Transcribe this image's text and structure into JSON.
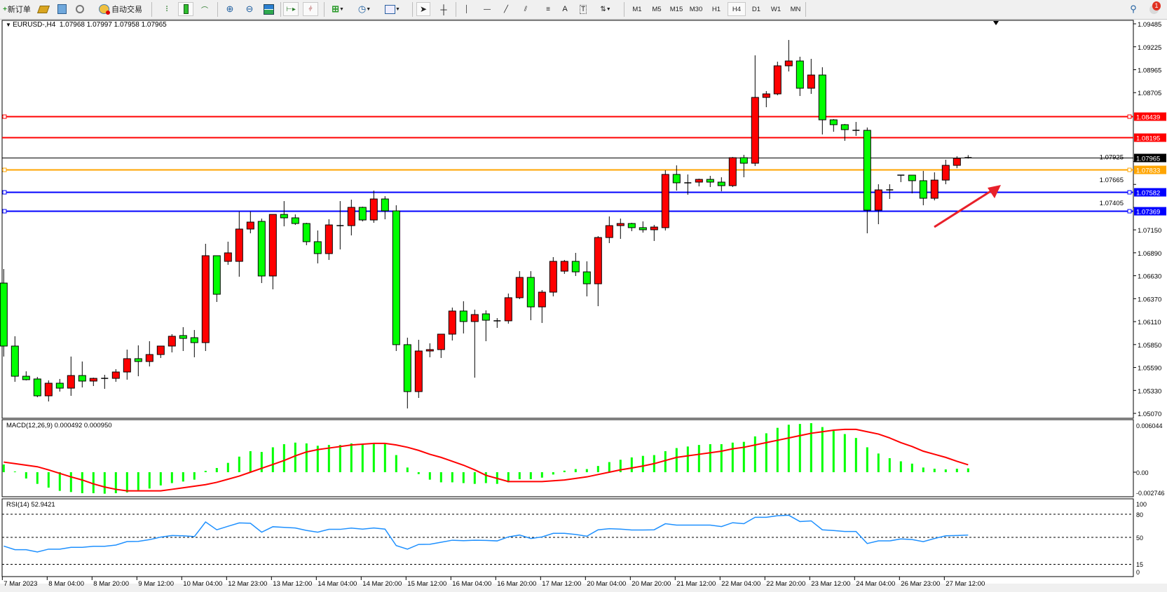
{
  "toolbar": {
    "new_order": "新订单",
    "auto_trading": "自动交易",
    "timeframes": [
      "M1",
      "M5",
      "M15",
      "M30",
      "H1",
      "H4",
      "D1",
      "W1",
      "MN"
    ],
    "active_timeframe": "H4",
    "notification_count": "1",
    "icons": [
      "new-order-icon",
      "market-watch-icon",
      "data-window-icon",
      "signals-icon",
      "auto-trading-icon",
      "bar-chart-icon",
      "candlestick-icon",
      "line-chart-icon",
      "zoom-in-icon",
      "zoom-out-icon",
      "tile-windows-icon",
      "auto-scroll-icon",
      "chart-shift-icon",
      "indicators-icon",
      "periods-icon",
      "templates-icon",
      "cursor-icon",
      "crosshair-icon",
      "vertical-line-icon",
      "horizontal-line-icon",
      "trendline-icon",
      "equidistant-channel-icon",
      "fibonacci-icon",
      "text-icon",
      "text-label-icon",
      "arrows-icon",
      "search-icon",
      "notification-icon"
    ]
  },
  "chart": {
    "header": "EURUSD-,H4  1.07968 1.07997 1.07958 1.07965",
    "macd_label": "MACD(12,26,9) 0.000492 0.000950",
    "rsi_label": "RSI(14) 52.9421"
  },
  "colors": {
    "bull": "#ff0000",
    "bear": "#00ff00",
    "macd_hist": "#00ff00",
    "signal": "#ff0000",
    "rsi": "#1e90ff",
    "arrow": "#e8202a"
  },
  "chart_data": {
    "type": "candlestick",
    "symbol": "EURUSD-",
    "timeframe": "H4",
    "ohlc": [
      [
        1.06547,
        1.06706,
        1.05714,
        1.05833
      ],
      [
        1.05833,
        1.05944,
        1.05428,
        1.05491
      ],
      [
        1.05491,
        1.05547,
        1.05444,
        1.05452
      ],
      [
        1.0546,
        1.05483,
        1.05253,
        1.05269
      ],
      [
        1.05269,
        1.05444,
        1.05205,
        1.05412
      ],
      [
        1.05412,
        1.0546,
        1.05317,
        1.05356
      ],
      [
        1.05356,
        1.05714,
        1.05269,
        1.05499
      ],
      [
        1.05499,
        1.05658,
        1.05364,
        1.05436
      ],
      [
        1.05436,
        1.05475,
        1.0538,
        1.05467
      ],
      [
        1.05467,
        1.05507,
        1.05348,
        1.05467
      ],
      [
        1.05467,
        1.05571,
        1.05428,
        1.05539
      ],
      [
        1.05539,
        1.05793,
        1.05452,
        1.0569
      ],
      [
        1.0569,
        1.05841,
        1.05491,
        1.05658
      ],
      [
        1.05658,
        1.05888,
        1.05602,
        1.05737
      ],
      [
        1.05737,
        1.05833,
        1.05698,
        1.05833
      ],
      [
        1.05833,
        1.05968,
        1.05761,
        1.05944
      ],
      [
        1.05952,
        1.06047,
        1.05777,
        1.0592
      ],
      [
        1.05928,
        1.06015,
        1.05706,
        1.05872
      ],
      [
        1.05872,
        1.06992,
        1.05777,
        1.06857
      ],
      [
        1.06857,
        1.06857,
        1.06333,
        1.0642
      ],
      [
        1.06793,
        1.07016,
        1.06754,
        1.06889
      ],
      [
        1.06793,
        1.07357,
        1.06619,
        1.07159
      ],
      [
        1.07159,
        1.07357,
        1.07111,
        1.07238
      ],
      [
        1.07246,
        1.07278,
        1.06547,
        1.06627
      ],
      [
        1.06627,
        1.07325,
        1.06476,
        1.07325
      ],
      [
        1.07325,
        1.07476,
        1.0719,
        1.07286
      ],
      [
        1.07286,
        1.07325,
        1.07206,
        1.07222
      ],
      [
        1.07222,
        1.0723,
        1.06976,
        1.07016
      ],
      [
        1.07016,
        1.07143,
        1.0677,
        1.06881
      ],
      [
        1.06881,
        1.0727,
        1.06809,
        1.07206
      ],
      [
        1.07198,
        1.07476,
        1.06928,
        1.07198
      ],
      [
        1.07198,
        1.07492,
        1.07087,
        1.07405
      ],
      [
        1.07405,
        1.07413,
        1.07246,
        1.07262
      ],
      [
        1.07262,
        1.07595,
        1.0723,
        1.075
      ],
      [
        1.075,
        1.07532,
        1.0727,
        1.07365
      ],
      [
        1.07365,
        1.07429,
        1.05777,
        1.05849
      ],
      [
        1.05849,
        1.05928,
        1.05126,
        1.05317
      ],
      [
        1.05317,
        1.05904,
        1.05245,
        1.05777
      ],
      [
        1.05777,
        1.05864,
        1.05706,
        1.05793
      ],
      [
        1.05793,
        1.05968,
        1.05698,
        1.05968
      ],
      [
        1.05968,
        1.06269,
        1.05896,
        1.0623
      ],
      [
        1.0623,
        1.06341,
        1.05976,
        1.06111
      ],
      [
        1.06111,
        1.06246,
        1.05475,
        1.0619
      ],
      [
        1.06198,
        1.06238,
        1.05888,
        1.06126
      ],
      [
        1.06119,
        1.0615,
        1.06039,
        1.06119
      ],
      [
        1.06119,
        1.06428,
        1.06087,
        1.06381
      ],
      [
        1.06381,
        1.06682,
        1.06365,
        1.06611
      ],
      [
        1.06611,
        1.06682,
        1.06126,
        1.06277
      ],
      [
        1.06277,
        1.06468,
        1.06095,
        1.06444
      ],
      [
        1.06444,
        1.06841,
        1.06396,
        1.06793
      ],
      [
        1.06682,
        1.06809,
        1.06651,
        1.06793
      ],
      [
        1.06793,
        1.06889,
        1.06627,
        1.06674
      ],
      [
        1.06674,
        1.06793,
        1.06396,
        1.06539
      ],
      [
        1.06539,
        1.07079,
        1.06285,
        1.07063
      ],
      [
        1.07063,
        1.07302,
        1.07,
        1.07198
      ],
      [
        1.07198,
        1.07278,
        1.07048,
        1.07222
      ],
      [
        1.07222,
        1.0723,
        1.07135,
        1.07175
      ],
      [
        1.07175,
        1.07246,
        1.07119,
        1.07151
      ],
      [
        1.07151,
        1.07206,
        1.07024,
        1.07182
      ],
      [
        1.07175,
        1.07826,
        1.07143,
        1.07778
      ],
      [
        1.07778,
        1.07881,
        1.07595,
        1.07683
      ],
      [
        1.07683,
        1.07778,
        1.07548,
        1.07683
      ],
      [
        1.07691,
        1.0773,
        1.07643,
        1.07722
      ],
      [
        1.07722,
        1.07762,
        1.07635,
        1.07691
      ],
      [
        1.07691,
        1.07746,
        1.07587,
        1.07651
      ],
      [
        1.07651,
        1.07976,
        1.07635,
        1.07968
      ],
      [
        1.07968,
        1.08,
        1.07746,
        1.07905
      ],
      [
        1.07905,
        1.09128,
        1.07873,
        1.08651
      ],
      [
        1.08651,
        1.08723,
        1.0854,
        1.08691
      ],
      [
        1.08691,
        1.09056,
        1.08675,
        1.09009
      ],
      [
        1.09009,
        1.09302,
        1.08945,
        1.09064
      ],
      [
        1.09064,
        1.09112,
        1.08667,
        1.08755
      ],
      [
        1.08755,
        1.09088,
        1.08691,
        1.08905
      ],
      [
        1.08905,
        1.08993,
        1.08231,
        1.08397
      ],
      [
        1.08397,
        1.08405,
        1.08262,
        1.08342
      ],
      [
        1.08342,
        1.0835,
        1.08159,
        1.08286
      ],
      [
        1.08278,
        1.08373,
        1.08215,
        1.08278
      ],
      [
        1.08278,
        1.0831,
        1.07111,
        1.07373
      ],
      [
        1.07373,
        1.07667,
        1.07214,
        1.07603
      ],
      [
        1.07603,
        1.07667,
        1.075,
        1.07603
      ],
      [
        1.0777,
        1.0777,
        1.07691,
        1.0777
      ],
      [
        1.0777,
        1.0777,
        1.07564,
        1.07707
      ],
      [
        1.07707,
        1.07818,
        1.07429,
        1.07508
      ],
      [
        1.07508,
        1.07802,
        1.07484,
        1.07714
      ],
      [
        1.07714,
        1.07945,
        1.07667,
        1.07881
      ],
      [
        1.07881,
        1.07984,
        1.07849,
        1.07961
      ],
      [
        1.07968,
        1.07997,
        1.07958,
        1.07965
      ]
    ],
    "time_labels": [
      "7 Mar 2023",
      "8 Mar 04:00",
      "8 Mar 20:00",
      "9 Mar 12:00",
      "10 Mar 04:00",
      "12 Mar 23:00",
      "13 Mar 12:00",
      "14 Mar 04:00",
      "14 Mar 20:00",
      "15 Mar 12:00",
      "16 Mar 04:00",
      "16 Mar 20:00",
      "17 Mar 12:00",
      "20 Mar 04:00",
      "20 Mar 20:00",
      "21 Mar 12:00",
      "22 Mar 04:00",
      "22 Mar 20:00",
      "23 Mar 12:00",
      "24 Mar 04:00",
      "26 Mar 23:00",
      "27 Mar 12:00"
    ],
    "price_ticks": [
      "1.09485",
      "1.09225",
      "1.08965",
      "1.08705",
      "1.07925",
      "1.07665",
      "1.07405",
      "1.07150",
      "1.06890",
      "1.06630",
      "1.06370",
      "1.06110",
      "1.05850",
      "1.05590",
      "1.05330",
      "1.05070"
    ],
    "ylim": [
      1.0507,
      1.09485
    ],
    "hlines": [
      {
        "price": "1.08439",
        "color": "#ff0000"
      },
      {
        "price": "1.08195",
        "color": "#ff0000"
      },
      {
        "price": "1.07833",
        "color": "#ffa500"
      },
      {
        "price": "1.07582",
        "color": "#0000ff"
      },
      {
        "price": "1.07369",
        "color": "#0000ff"
      }
    ],
    "bid_line": {
      "price": "1.07965",
      "color": "#000000"
    },
    "annotation": "red arrow pointing up-right",
    "macd": {
      "params": "12,26,9",
      "axis_labels": [
        "0.006044",
        "0.00",
        "-0.002746"
      ],
      "histogram": [
        0.00099,
        9e-05,
        -0.00081,
        -0.0015,
        -0.00198,
        -0.0024,
        -0.00255,
        -0.0027,
        -0.0027,
        -0.00276,
        -0.0027,
        -0.0026,
        -0.0023,
        -0.0021,
        -0.0017,
        -0.0014,
        -0.0012,
        -0.00096,
        0.00018,
        0.00054,
        0.0012,
        0.002,
        0.0027,
        0.0026,
        0.0032,
        0.0036,
        0.0038,
        0.0037,
        0.0034,
        0.0035,
        0.0035,
        0.0037,
        0.0036,
        0.0037,
        0.0036,
        0.0022,
        0.0006,
        -0.00024,
        -0.00096,
        -0.0013,
        -0.0013,
        -0.0014,
        -0.0015,
        -0.0014,
        -0.0015,
        -0.0013,
        -0.0009,
        -0.0009,
        -0.0007,
        -0.0003,
        0.0002,
        0.0004,
        0.0004,
        0.0008,
        0.0013,
        0.0016,
        0.0019,
        0.0021,
        0.0022,
        0.0027,
        0.0031,
        0.0033,
        0.0035,
        0.0036,
        0.0036,
        0.0038,
        0.0039,
        0.0046,
        0.005,
        0.0057,
        0.0061,
        0.0062,
        0.0063,
        0.0058,
        0.0053,
        0.0049,
        0.0044,
        0.0032,
        0.0024,
        0.0018,
        0.0014,
        0.0011,
        0.0006,
        0.00045,
        0.00036,
        0.00045,
        0.000492
      ],
      "signal": [
        0.0013,
        0.0011,
        0.0009,
        0.0007,
        0.0003,
        -0.00015,
        -0.0006,
        -0.001,
        -0.0015,
        -0.0019,
        -0.0022,
        -0.0024,
        -0.0024,
        -0.0024,
        -0.0024,
        -0.0022,
        -0.002,
        -0.0018,
        -0.0016,
        -0.0013,
        -0.0009,
        -0.0005,
        0,
        0.0005,
        0.001,
        0.0015,
        0.0021,
        0.0026,
        0.0029,
        0.0031,
        0.0033,
        0.0035,
        0.0036,
        0.0037,
        0.0037,
        0.0035,
        0.0032,
        0.0028,
        0.0023,
        0.0019,
        0.0014,
        0.0009,
        0.0003,
        -0.0004,
        -0.0008,
        -0.0012,
        -0.0012,
        -0.0012,
        -0.0012,
        -0.0011,
        -0.001,
        -0.0008,
        -0.0006,
        -0.0003,
        0,
        0.0003,
        0.00054,
        0.0008,
        0.0011,
        0.0015,
        0.0019,
        0.0021,
        0.0023,
        0.0025,
        0.0027,
        0.003,
        0.0032,
        0.0035,
        0.0038,
        0.0041,
        0.0044,
        0.0047,
        0.005,
        0.0052,
        0.0054,
        0.0055,
        0.0055,
        0.0052,
        0.0049,
        0.0044,
        0.0038,
        0.0033,
        0.0027,
        0.0023,
        0.0019,
        0.0014,
        0.00095
      ],
      "ylim": [
        -0.002746,
        0.006044
      ]
    },
    "rsi": {
      "period": 14,
      "axis_labels": [
        "100",
        "80",
        "50",
        "15",
        "0"
      ],
      "levels": [
        80,
        50,
        15
      ],
      "values": [
        38.7,
        34,
        34,
        31,
        34.7,
        34.7,
        37,
        37,
        38.4,
        38.4,
        40,
        44.5,
        44.8,
        47,
        50.3,
        52.4,
        52,
        51,
        70,
        59.8,
        64.4,
        68.7,
        68.3,
        56.7,
        63.8,
        63,
        62.2,
        59,
        56.7,
        60.4,
        60.4,
        62,
        60.7,
        62.2,
        60.7,
        39.3,
        34.7,
        40.8,
        41,
        43.6,
        46.3,
        45.7,
        46.3,
        46,
        45.4,
        50.6,
        53,
        48.5,
        50.6,
        55.2,
        55.2,
        53.7,
        51.5,
        59.8,
        61.3,
        60.7,
        59.5,
        59.5,
        59.8,
        67.7,
        65.9,
        65.9,
        65.9,
        65.9,
        64,
        69,
        67.7,
        76,
        76,
        78.1,
        78.7,
        70.5,
        71.4,
        59.8,
        58.9,
        57.6,
        57.6,
        42,
        45.4,
        45.4,
        47.9,
        47.2,
        44.5,
        48.5,
        52,
        52.4,
        52.9421
      ],
      "ylim": [
        0,
        100
      ]
    }
  }
}
